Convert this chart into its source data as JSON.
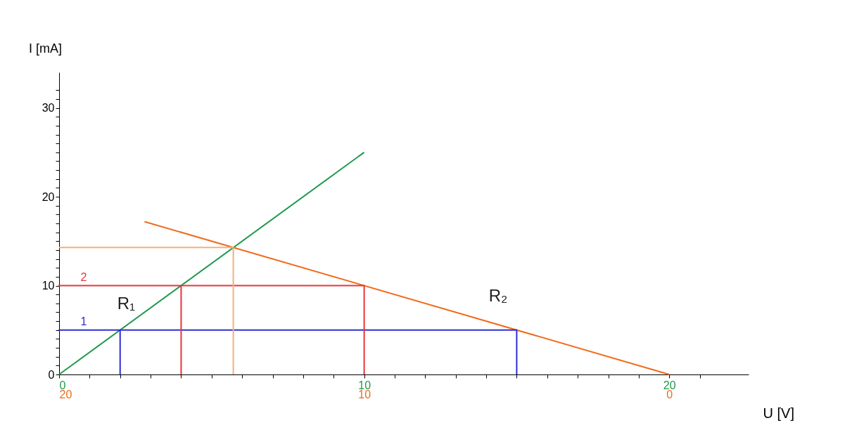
{
  "chart_data": {
    "type": "line",
    "xlabel": "U [V]",
    "ylabel": "I [mA]",
    "xlim": [
      0,
      22.6
    ],
    "ylim": [
      0,
      34
    ],
    "xticks": [
      0,
      {
        "value": 1,
        "label": null
      },
      {
        "value": 2,
        "label": null
      },
      {
        "value": 3,
        "label": null
      },
      {
        "value": 4,
        "label": null
      },
      {
        "value": 5,
        "label": null
      },
      {
        "value": 6,
        "label": null
      },
      {
        "value": 7,
        "label": null
      },
      {
        "value": 8,
        "label": null
      },
      {
        "value": 9,
        "label": null
      },
      10,
      {
        "value": 11,
        "label": null
      },
      {
        "value": 12,
        "label": null
      },
      {
        "value": 13,
        "label": null
      },
      {
        "value": 14,
        "label": null
      },
      {
        "value": 15,
        "label": null
      },
      {
        "value": 16,
        "label": null
      },
      {
        "value": 17,
        "label": null
      },
      {
        "value": 18,
        "label": null
      },
      {
        "value": 19,
        "label": null
      },
      20,
      {
        "value": 21,
        "label": null
      }
    ],
    "yticks": [
      0,
      {
        "value": 1,
        "label": null
      },
      {
        "value": 2,
        "label": null
      },
      {
        "value": 3,
        "label": null
      },
      {
        "value": 4,
        "label": null
      },
      {
        "value": 5,
        "label": null
      },
      {
        "value": 6,
        "label": null
      },
      {
        "value": 7,
        "label": null
      },
      {
        "value": 8,
        "label": null
      },
      {
        "value": 9,
        "label": null
      },
      10,
      {
        "value": 11,
        "label": null
      },
      {
        "value": 12,
        "label": null
      },
      {
        "value": 13,
        "label": null
      },
      {
        "value": 14,
        "label": null
      },
      {
        "value": 15,
        "label": null
      },
      {
        "value": 16,
        "label": null
      },
      {
        "value": 17,
        "label": null
      },
      {
        "value": 18,
        "label": null
      },
      {
        "value": 19,
        "label": null
      },
      20,
      {
        "value": 21,
        "label": null
      },
      {
        "value": 22,
        "label": null
      },
      {
        "value": 23,
        "label": null
      },
      {
        "value": 24,
        "label": null
      },
      {
        "value": 25,
        "label": null
      },
      {
        "value": 26,
        "label": null
      },
      {
        "value": 27,
        "label": null
      },
      {
        "value": 28,
        "label": null
      },
      {
        "value": 29,
        "label": null
      },
      30,
      {
        "value": 31,
        "label": null
      },
      {
        "value": 32,
        "label": null
      }
    ],
    "x2lim": [
      20,
      -2.6
    ],
    "x2ticks": [
      20,
      10,
      0
    ],
    "series": [
      {
        "name": "R₁",
        "color": "#1e9a4c",
        "x": [
          0,
          10
        ],
        "values": [
          0,
          25
        ]
      },
      {
        "name": "R₂",
        "color": "#f26a1b",
        "x": [
          2.8,
          20
        ],
        "values": [
          17.2,
          0
        ]
      },
      {
        "name": "1",
        "color": "#2d2dd6",
        "x": [
          2,
          2,
          0,
          15,
          15
        ],
        "values": [
          0,
          5,
          5,
          5,
          0
        ]
      },
      {
        "name": "2",
        "color": "#e8343c",
        "x": [
          4,
          4,
          0,
          10,
          10
        ],
        "values": [
          0,
          10,
          10,
          10,
          0
        ]
      },
      {
        "color": "#f5b07a",
        "x": [
          5.71,
          5.71,
          0
        ],
        "values": [
          0,
          14.29,
          14.29
        ]
      }
    ],
    "grid": false,
    "marker": "none",
    "line_style": "solid"
  }
}
